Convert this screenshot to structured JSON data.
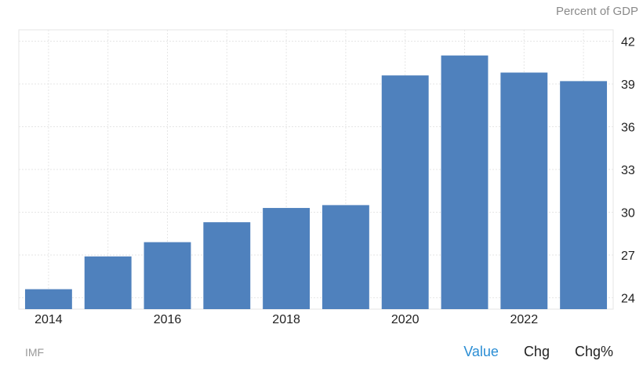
{
  "unit_label": "Percent of GDP",
  "source": "IMF",
  "tabs": [
    {
      "label": "Value",
      "active": true
    },
    {
      "label": "Chg",
      "active": false
    },
    {
      "label": "Chg%",
      "active": false
    }
  ],
  "colors": {
    "bar": "#4f81bd",
    "grid": "#e6e6e6",
    "axis_text": "#222222",
    "active_tab": "#2a8dd4"
  },
  "chart_data": {
    "type": "bar",
    "categories": [
      "2014",
      "2015",
      "2016",
      "2017",
      "2018",
      "2019",
      "2020",
      "2021",
      "2022",
      "2023"
    ],
    "x_tick_labels": [
      "2014",
      "",
      "2016",
      "",
      "2018",
      "",
      "2020",
      "",
      "2022",
      ""
    ],
    "values": [
      24.6,
      26.9,
      27.9,
      29.3,
      30.3,
      30.5,
      39.6,
      41.0,
      39.8,
      39.2
    ],
    "ylim": [
      23.2,
      42.8
    ],
    "yticks": [
      24,
      27,
      30,
      33,
      36,
      39,
      42
    ],
    "y_axis_side": "right",
    "grid": true,
    "title": "",
    "xlabel": "",
    "ylabel": "Percent of GDP"
  }
}
